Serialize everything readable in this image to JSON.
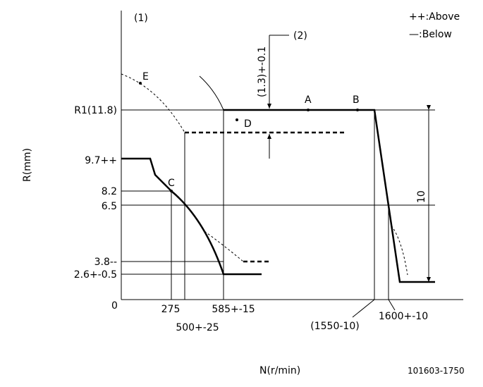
{
  "header": {
    "figure_ref": "(1)",
    "legend_above": "++:Above",
    "legend_below": "—:Below",
    "note_ref": "(2)"
  },
  "axes": {
    "y_label": "R(mm)",
    "x_label": "N(r/min)",
    "origin": "0"
  },
  "y_labels": [
    "R1(11.8)",
    "9.7++",
    "8.2",
    "6.5",
    "3.8--",
    "2.6+-0.5"
  ],
  "x_labels": [
    "275",
    "585+-15",
    "500+-25",
    "(1550-10)",
    "1600+-10"
  ],
  "points": [
    "A",
    "B",
    "C",
    "D",
    "E"
  ],
  "dimensions": {
    "offset": "(1.3)+-0.1",
    "stroke": "10"
  },
  "drawing_number": "101603-1750"
}
